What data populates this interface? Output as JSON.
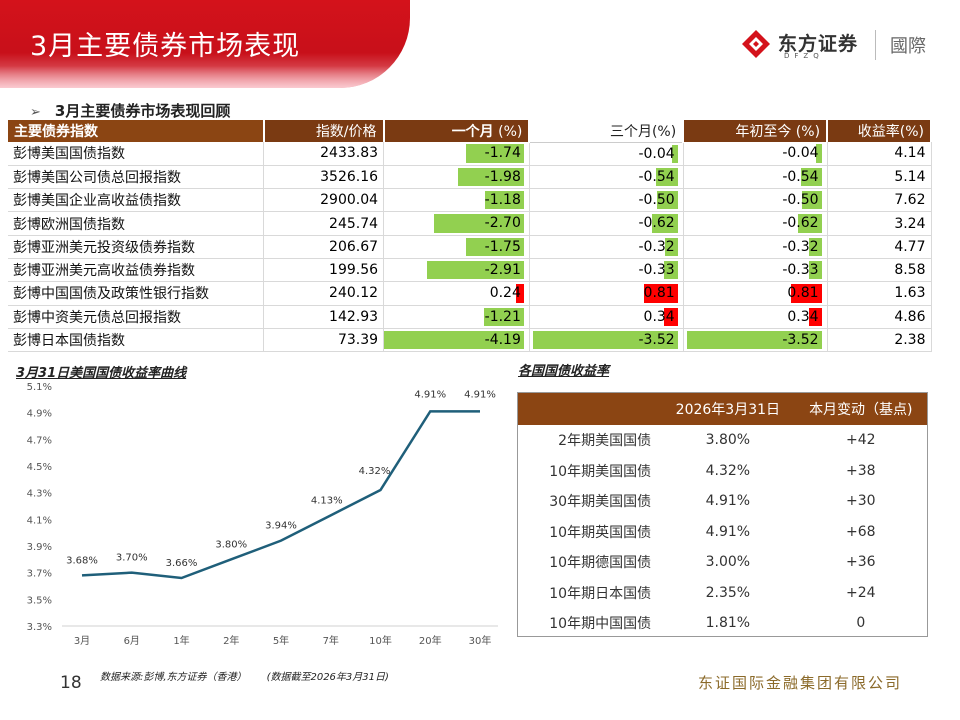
{
  "header": {
    "title": "3月主要债券市场表现",
    "logo_name": "东方证券",
    "logo_sub": "DFZQ",
    "logo_intl": "國際"
  },
  "section": {
    "title": "3月主要债券市场表现回顾"
  },
  "bond_table": {
    "headers": [
      "主要债券指数",
      "指数/价格",
      "一个月",
      "(%)",
      "三个月(%)",
      "年初至今 (%)",
      "收益率(%)"
    ],
    "rows": [
      {
        "name": "彭博美国国债指数",
        "price": "2433.83",
        "m1": "-1.74",
        "m3": "-0.04",
        "ytd": "-0.04",
        "yield": "4.14"
      },
      {
        "name": "彭博美国公司债总回报指数",
        "price": "3526.16",
        "m1": "-1.98",
        "m3": "-0.54",
        "ytd": "-0.54",
        "yield": "5.14"
      },
      {
        "name": "彭博美国企业高收益债指数",
        "price": "2900.04",
        "m1": "-1.18",
        "m3": "-0.50",
        "ytd": "-0.50",
        "yield": "7.62"
      },
      {
        "name": "彭博欧洲国债指数",
        "price": "245.74",
        "m1": "-2.70",
        "m3": "-0.62",
        "ytd": "-0.62",
        "yield": "3.24"
      },
      {
        "name": "彭博亚洲美元投资级债券指数",
        "price": "206.67",
        "m1": "-1.75",
        "m3": "-0.32",
        "ytd": "-0.32",
        "yield": "4.77"
      },
      {
        "name": "彭博亚洲美元高收益债券指数",
        "price": "199.56",
        "m1": "-2.91",
        "m3": "-0.33",
        "ytd": "-0.33",
        "yield": "8.58"
      },
      {
        "name": "彭博中国国债及政策性银行指数",
        "price": "240.12",
        "m1": "0.24",
        "m3": "0.81",
        "ytd": "0.81",
        "yield": "1.63"
      },
      {
        "name": "彭博中资美元债总回报指数",
        "price": "142.93",
        "m1": "-1.21",
        "m3": "0.34",
        "ytd": "0.34",
        "yield": "4.86"
      },
      {
        "name": "彭博日本国债指数",
        "price": "73.39",
        "m1": "-4.19",
        "m3": "-3.52",
        "ytd": "-3.52",
        "yield": "2.38"
      }
    ]
  },
  "chart_data": {
    "type": "line",
    "title": "3月31日美国国债收益率曲线",
    "categories": [
      "3月",
      "6月",
      "1年",
      "2年",
      "5年",
      "7年",
      "10年",
      "20年",
      "30年"
    ],
    "series": [
      {
        "values": [
          3.68,
          3.7,
          3.66,
          3.8,
          3.94,
          4.13,
          4.32,
          4.91,
          4.91
        ]
      }
    ],
    "data_labels": [
      "3.68%",
      "3.70%",
      "3.66%",
      "3.80%",
      "3.94%",
      "4.13%",
      "4.32%",
      "4.91%",
      "4.91%"
    ],
    "ylim": [
      3.3,
      5.1
    ],
    "yticks": [
      "5.1%",
      "4.9%",
      "4.7%",
      "4.5%",
      "4.3%",
      "4.1%",
      "3.9%",
      "3.7%",
      "3.5%",
      "3.3%"
    ],
    "line_color": "#1f5f7a",
    "grid": false
  },
  "yield_table": {
    "title": "各国国债收益率",
    "headers": [
      "",
      "2026年3月31日",
      "本月变动（基点)"
    ],
    "rows": [
      {
        "name": "2年期美国国债",
        "value": "3.80%",
        "change": "+42"
      },
      {
        "name": "10年期美国国债",
        "value": "4.32%",
        "change": "+38"
      },
      {
        "name": "30年期美国国债",
        "value": "4.91%",
        "change": "+30"
      },
      {
        "name": "10年期英国国债",
        "value": "4.91%",
        "change": "+68"
      },
      {
        "name": "10年期德国国债",
        "value": "3.00%",
        "change": "+36"
      },
      {
        "name": "10年期日本国债",
        "value": "2.35%",
        "change": "+24"
      },
      {
        "name": "10年期中国国债",
        "value": "1.81%",
        "change": "0"
      }
    ]
  },
  "footer": {
    "page_number": "18",
    "source": "数据来源:彭博,东方证券（香港）",
    "date_note": "(数据截至2026年3月31日)",
    "company": "东证国际金融集团有限公司"
  },
  "colors": {
    "brand_red": "#d4121b",
    "header_brown": "#8b4513",
    "bar_negative": "#92d050",
    "bar_positive": "#ff0000"
  }
}
